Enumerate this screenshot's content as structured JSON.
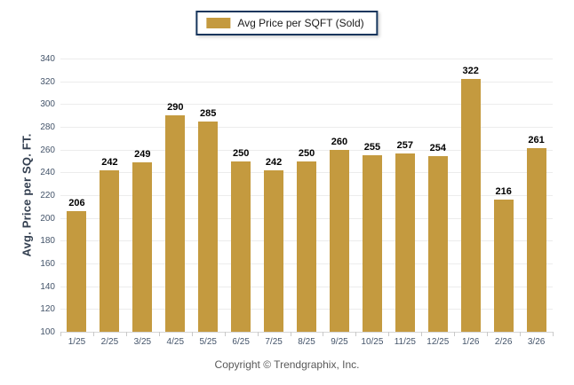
{
  "legend": {
    "label": "Avg Price per SQFT (Sold)"
  },
  "footer": {
    "copyright": "Copyright © Trendgraphix, Inc."
  },
  "chart_data": {
    "type": "bar",
    "title": "",
    "categories": [
      "1/25",
      "2/25",
      "3/25",
      "4/25",
      "5/25",
      "6/25",
      "7/25",
      "8/25",
      "9/25",
      "10/25",
      "11/25",
      "12/25",
      "1/26",
      "2/26",
      "3/26"
    ],
    "values": [
      206,
      242,
      249,
      290,
      285,
      250,
      242,
      250,
      260,
      255,
      257,
      254,
      322,
      216,
      261
    ],
    "xlabel": "",
    "ylabel": "Avg. Price per SQ. FT.",
    "ylim": [
      100,
      340
    ],
    "ytick_step": 20,
    "grid": "horizontal",
    "legend_position": "top-center",
    "bar_color": "#C49A3F",
    "grid_color": "#ECECEC",
    "tick_label_color": "#44546A"
  }
}
